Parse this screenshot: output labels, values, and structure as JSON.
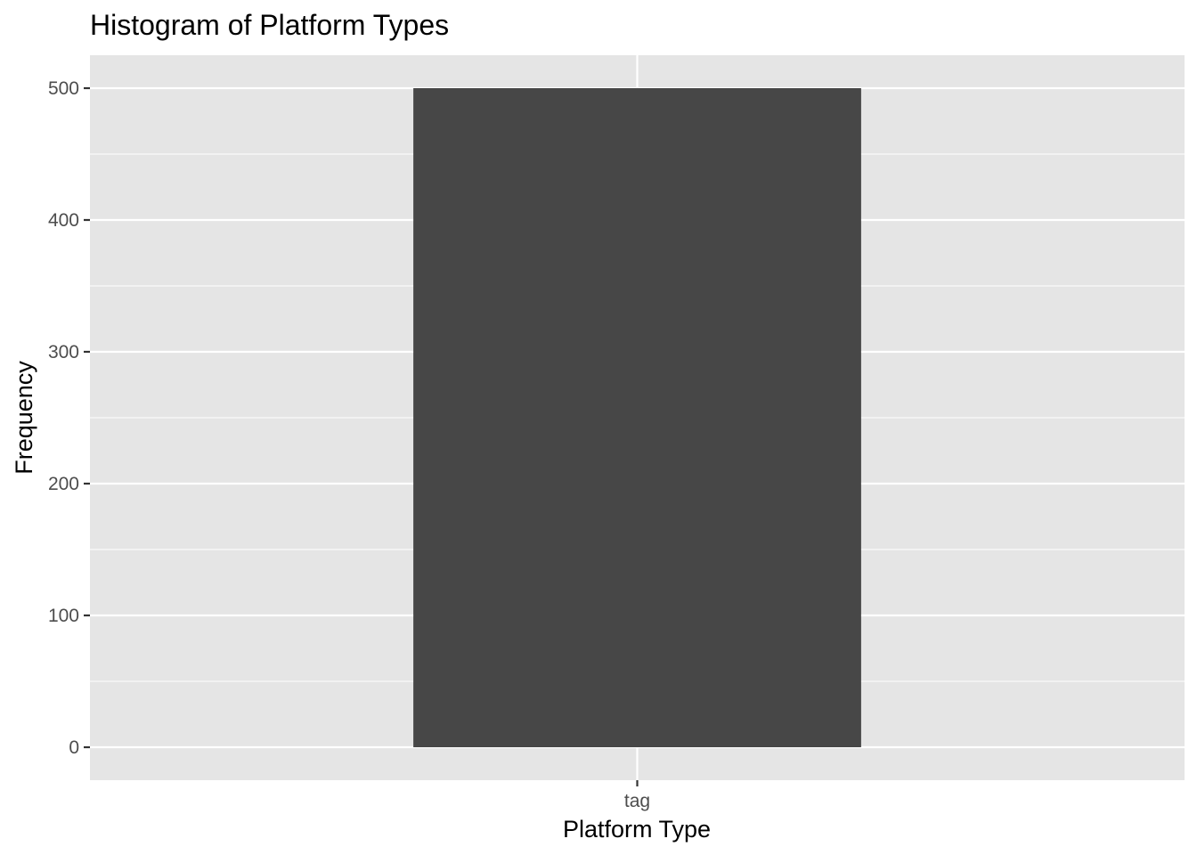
{
  "chart_data": {
    "type": "bar",
    "title": "Histogram of Platform Types",
    "xlabel": "Platform Type",
    "ylabel": "Frequency",
    "categories": [
      "tag"
    ],
    "values": [
      500
    ],
    "ylim": [
      -25,
      525
    ],
    "yticks": [
      0,
      100,
      200,
      300,
      400,
      500
    ],
    "grid": true,
    "colors": {
      "panel_background": "#e5e5e5",
      "grid": "#ffffff",
      "bar_fill": "#474747",
      "tick_text": "#4d4d4d",
      "tick_mark": "#333333"
    }
  }
}
